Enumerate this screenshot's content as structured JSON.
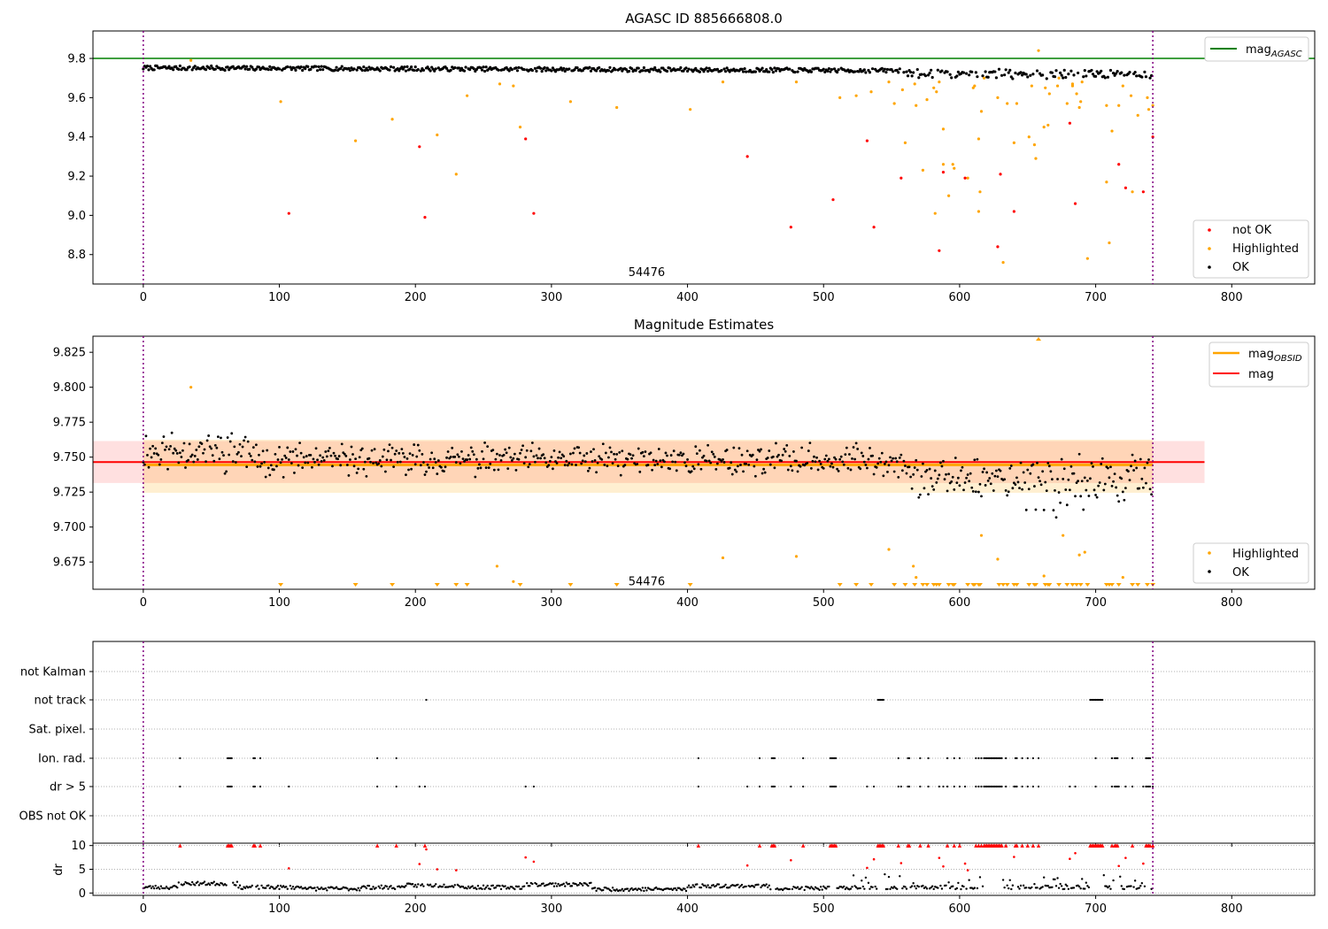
{
  "chart_data": [
    {
      "type": "scatter",
      "title": "AGASC ID 885666808.0",
      "xlim": [
        -37,
        861
      ],
      "ylim": [
        8.65,
        9.94
      ],
      "xticks": [
        0,
        100,
        200,
        300,
        400,
        500,
        600,
        700,
        800
      ],
      "yticks": [
        8.8,
        9.0,
        9.2,
        9.4,
        9.6,
        9.8
      ],
      "ytick_labels": [
        "8.8",
        "9.0",
        "9.2",
        "9.4",
        "9.6",
        "9.8"
      ],
      "vlines": [
        0,
        742
      ],
      "obsid_label": {
        "text": "54476",
        "x": 370,
        "y": 8.69
      },
      "mag_agasc": 9.8,
      "legend_top": [
        {
          "label": "mag",
          "sub": "AGASC",
          "color": "#008000"
        }
      ],
      "legend_bottom": [
        {
          "label": "not OK",
          "color": "#ff0000"
        },
        {
          "label": "Highlighted",
          "color": "#ffa500"
        },
        {
          "label": "OK",
          "color": "#000000"
        }
      ],
      "ok_band": {
        "n": 742,
        "center": 9.752,
        "amp": 0.011
      },
      "not_ok_points": [
        [
          107,
          9.01
        ],
        [
          203,
          9.35
        ],
        [
          207,
          8.99
        ],
        [
          281,
          9.39
        ],
        [
          287,
          9.01
        ],
        [
          444,
          9.3
        ],
        [
          476,
          8.94
        ],
        [
          507,
          9.08
        ],
        [
          532,
          9.38
        ],
        [
          537,
          8.94
        ],
        [
          557,
          9.19
        ],
        [
          585,
          8.82
        ],
        [
          588,
          9.22
        ],
        [
          604,
          9.19
        ],
        [
          628,
          8.84
        ],
        [
          630,
          9.21
        ],
        [
          640,
          9.02
        ],
        [
          681,
          9.47
        ],
        [
          685,
          9.06
        ],
        [
          717,
          9.26
        ],
        [
          722,
          9.14
        ],
        [
          735,
          9.12
        ],
        [
          742,
          9.4
        ]
      ],
      "highlighted_points": [
        [
          35,
          9.79
        ],
        [
          101,
          9.58
        ],
        [
          156,
          9.38
        ],
        [
          183,
          9.49
        ],
        [
          216,
          9.41
        ],
        [
          230,
          9.21
        ],
        [
          238,
          9.61
        ],
        [
          262,
          9.67
        ],
        [
          272,
          9.66
        ],
        [
          277,
          9.45
        ],
        [
          314,
          9.58
        ],
        [
          348,
          9.55
        ],
        [
          402,
          9.54
        ],
        [
          426,
          9.68
        ],
        [
          480,
          9.68
        ],
        [
          512,
          9.6
        ],
        [
          524,
          9.61
        ],
        [
          535,
          9.63
        ],
        [
          548,
          9.68
        ],
        [
          552,
          9.57
        ],
        [
          558,
          9.64
        ],
        [
          560,
          9.37
        ],
        [
          567,
          9.67
        ],
        [
          568,
          9.56
        ],
        [
          573,
          9.23
        ],
        [
          576,
          9.59
        ],
        [
          581,
          9.65
        ],
        [
          582,
          9.01
        ],
        [
          583,
          9.63
        ],
        [
          585,
          9.68
        ],
        [
          588,
          9.44
        ],
        [
          588,
          9.26
        ],
        [
          592,
          9.1
        ],
        [
          595,
          9.26
        ],
        [
          596,
          9.24
        ],
        [
          606,
          9.19
        ],
        [
          610,
          9.65
        ],
        [
          611,
          9.66
        ],
        [
          614,
          9.39
        ],
        [
          614,
          9.02
        ],
        [
          615,
          9.12
        ],
        [
          616,
          9.53
        ],
        [
          618,
          9.7
        ],
        [
          628,
          9.6
        ],
        [
          632,
          8.76
        ],
        [
          635,
          9.57
        ],
        [
          640,
          9.37
        ],
        [
          642,
          9.57
        ],
        [
          651,
          9.4
        ],
        [
          653,
          9.66
        ],
        [
          655,
          9.36
        ],
        [
          656,
          9.29
        ],
        [
          658,
          9.84
        ],
        [
          662,
          9.45
        ],
        [
          663,
          9.65
        ],
        [
          665,
          9.46
        ],
        [
          666,
          9.62
        ],
        [
          672,
          9.66
        ],
        [
          673,
          9.7
        ],
        [
          679,
          9.57
        ],
        [
          683,
          9.66
        ],
        [
          683,
          9.67
        ],
        [
          686,
          9.62
        ],
        [
          688,
          9.55
        ],
        [
          689,
          9.58
        ],
        [
          690,
          9.68
        ],
        [
          694,
          8.78
        ],
        [
          708,
          9.17
        ],
        [
          708,
          9.56
        ],
        [
          710,
          8.86
        ],
        [
          712,
          9.43
        ],
        [
          717,
          9.56
        ],
        [
          720,
          9.66
        ],
        [
          726,
          9.61
        ],
        [
          727,
          9.12
        ],
        [
          731,
          9.51
        ],
        [
          738,
          9.6
        ],
        [
          739,
          9.54
        ],
        [
          742,
          9.56
        ]
      ]
    },
    {
      "type": "scatter",
      "title": "Magnitude Estimates",
      "xlim": [
        -37,
        861
      ],
      "ylim": [
        9.6555,
        9.8365
      ],
      "xticks": [
        0,
        100,
        200,
        300,
        400,
        500,
        600,
        700,
        800
      ],
      "yticks": [
        9.675,
        9.7,
        9.725,
        9.75,
        9.775,
        9.8,
        9.825
      ],
      "ytick_labels": [
        "9.675",
        "9.700",
        "9.725",
        "9.750",
        "9.775",
        "9.800",
        "9.825"
      ],
      "vlines": [
        0,
        742
      ],
      "obsid_label": {
        "text": "54476",
        "x": 370,
        "y": 9.6585
      },
      "mag": 9.7465,
      "mag_band": [
        9.7315,
        9.7615
      ],
      "mag_obsid": 9.7445,
      "mag_obsid_band": [
        9.7245,
        9.7625
      ],
      "legend_top": [
        {
          "label": "mag",
          "sub": "OBSID",
          "color": "#ffa500"
        },
        {
          "label": "mag",
          "sub": "",
          "color": "#ff0000"
        }
      ],
      "legend_bottom": [
        {
          "label": "Highlighted",
          "color": "#ffa500"
        },
        {
          "label": "OK",
          "color": "#000000"
        }
      ],
      "ok_n": 742,
      "highlighted_points": [
        [
          35,
          9.8
        ],
        [
          260,
          9.672
        ],
        [
          272,
          9.661
        ],
        [
          426,
          9.678
        ],
        [
          480,
          9.679
        ],
        [
          548,
          9.684
        ],
        [
          566,
          9.672
        ],
        [
          568,
          9.664
        ],
        [
          616,
          9.694
        ],
        [
          628,
          9.677
        ],
        [
          662,
          9.665
        ],
        [
          676,
          9.694
        ],
        [
          688,
          9.68
        ],
        [
          692,
          9.682
        ],
        [
          720,
          9.664
        ]
      ],
      "lower_limit_x": [
        101,
        156,
        183,
        216,
        230,
        238,
        277,
        314,
        348,
        402,
        512,
        524,
        535,
        552,
        560,
        567,
        573,
        576,
        581,
        583,
        585,
        592,
        595,
        596,
        606,
        610,
        611,
        614,
        615,
        629,
        632,
        635,
        640,
        642,
        651,
        655,
        656,
        663,
        665,
        666,
        673,
        679,
        683,
        686,
        689,
        694,
        708,
        710,
        712,
        717,
        727,
        731,
        738,
        742
      ],
      "upper_limit_x": [
        658
      ]
    },
    {
      "type": "scatter",
      "title": "",
      "xlim": [
        -37,
        861
      ],
      "xticks": [
        0,
        100,
        200,
        300,
        400,
        500,
        600,
        700,
        800
      ],
      "vlines": [
        0,
        742
      ],
      "flag_rows": [
        "not Kalman",
        "not track",
        "Sat. pixel.",
        "Ion. rad.",
        "dr > 5",
        "OBS not OK"
      ],
      "flag_points": {
        "not track": [
          208,
          540,
          541,
          542,
          543,
          544,
          696,
          697,
          698,
          699,
          700,
          701,
          702,
          703,
          704,
          705
        ],
        "Ion. rad.": [
          27,
          62,
          63,
          64,
          65,
          81,
          82,
          86,
          172,
          186,
          408,
          453,
          462,
          463,
          464,
          485,
          505,
          506,
          507,
          508,
          509,
          555,
          562,
          563,
          571,
          577,
          591,
          596,
          600,
          612,
          614,
          616,
          618,
          619,
          620,
          621,
          622,
          623,
          624,
          625,
          626,
          627,
          628,
          629,
          630,
          631,
          634,
          641,
          642,
          646,
          650,
          654,
          658,
          700,
          712,
          714,
          715,
          716,
          727,
          737,
          738,
          739,
          740
        ],
        "dr > 5": [
          27,
          62,
          63,
          64,
          65,
          81,
          82,
          86,
          107,
          172,
          186,
          203,
          207,
          281,
          287,
          408,
          444,
          453,
          462,
          463,
          464,
          476,
          485,
          505,
          506,
          507,
          508,
          509,
          532,
          537,
          555,
          557,
          562,
          563,
          571,
          577,
          585,
          588,
          591,
          596,
          600,
          604,
          612,
          614,
          616,
          618,
          619,
          620,
          621,
          622,
          623,
          624,
          625,
          626,
          627,
          628,
          629,
          630,
          631,
          634,
          640,
          641,
          642,
          646,
          650,
          654,
          658,
          681,
          685,
          700,
          712,
          714,
          715,
          716,
          717,
          722,
          727,
          735,
          737,
          738,
          739,
          740,
          742
        ],
        "Sat. pixel.": [],
        "not Kalman": [],
        "OBS not OK": []
      }
    },
    {
      "type": "scatter",
      "title": "",
      "ylabel": "dr",
      "xlim": [
        -37,
        861
      ],
      "ylim": [
        -0.5,
        10.5
      ],
      "xticks": [
        0,
        100,
        200,
        300,
        400,
        500,
        600,
        700,
        800
      ],
      "xtick_labels": [
        "0",
        "100",
        "200",
        "300",
        "400",
        "500",
        "600",
        "700",
        "800"
      ],
      "yticks": [
        0,
        5,
        10
      ],
      "ytick_labels": [
        "0",
        "5",
        "10"
      ],
      "vlines": [
        0,
        742
      ],
      "dr_ok_n": 742,
      "dr_red_points": [
        [
          27,
          10
        ],
        [
          62,
          10
        ],
        [
          63,
          10
        ],
        [
          64,
          10
        ],
        [
          65,
          10
        ],
        [
          81,
          10
        ],
        [
          82,
          10
        ],
        [
          86,
          10
        ],
        [
          107,
          5.2
        ],
        [
          172,
          10
        ],
        [
          186,
          10
        ],
        [
          203,
          6.1
        ],
        [
          207,
          10
        ],
        [
          208,
          9.2
        ],
        [
          216,
          5.0
        ],
        [
          230,
          4.8
        ],
        [
          281,
          7.5
        ],
        [
          287,
          6.6
        ],
        [
          408,
          10
        ],
        [
          444,
          5.8
        ],
        [
          453,
          10
        ],
        [
          462,
          10
        ],
        [
          463,
          10
        ],
        [
          464,
          10
        ],
        [
          476,
          6.9
        ],
        [
          485,
          10
        ],
        [
          505,
          10
        ],
        [
          506,
          10
        ],
        [
          507,
          10
        ],
        [
          508,
          10
        ],
        [
          509,
          10
        ],
        [
          532,
          5.3
        ],
        [
          537,
          7.1
        ],
        [
          540,
          10
        ],
        [
          541,
          10
        ],
        [
          542,
          10
        ],
        [
          543,
          10
        ],
        [
          544,
          10
        ],
        [
          555,
          10
        ],
        [
          557,
          6.3
        ],
        [
          562,
          10
        ],
        [
          563,
          10
        ],
        [
          571,
          10
        ],
        [
          577,
          10
        ],
        [
          585,
          7.4
        ],
        [
          588,
          5.6
        ],
        [
          591,
          10
        ],
        [
          596,
          10
        ],
        [
          600,
          10
        ],
        [
          604,
          6.2
        ],
        [
          606,
          4.8
        ],
        [
          612,
          10
        ],
        [
          614,
          10
        ],
        [
          616,
          10
        ],
        [
          618,
          10
        ],
        [
          619,
          10
        ],
        [
          620,
          10
        ],
        [
          621,
          10
        ],
        [
          622,
          10
        ],
        [
          623,
          10
        ],
        [
          624,
          10
        ],
        [
          625,
          10
        ],
        [
          626,
          10
        ],
        [
          627,
          10
        ],
        [
          628,
          10
        ],
        [
          629,
          10
        ],
        [
          630,
          10
        ],
        [
          631,
          10
        ],
        [
          634,
          10
        ],
        [
          640,
          7.6
        ],
        [
          641,
          10
        ],
        [
          642,
          10
        ],
        [
          646,
          10
        ],
        [
          650,
          10
        ],
        [
          654,
          10
        ],
        [
          658,
          10
        ],
        [
          681,
          7.2
        ],
        [
          685,
          8.4
        ],
        [
          696,
          10
        ],
        [
          697,
          10
        ],
        [
          698,
          10
        ],
        [
          699,
          10
        ],
        [
          700,
          10
        ],
        [
          701,
          10
        ],
        [
          702,
          10
        ],
        [
          703,
          10
        ],
        [
          704,
          10
        ],
        [
          705,
          10
        ],
        [
          712,
          10
        ],
        [
          714,
          10
        ],
        [
          715,
          10
        ],
        [
          716,
          10
        ],
        [
          717,
          5.7
        ],
        [
          722,
          7.4
        ],
        [
          727,
          10
        ],
        [
          735,
          6.2
        ],
        [
          737,
          10
        ],
        [
          738,
          10
        ],
        [
          739,
          10
        ],
        [
          740,
          10
        ],
        [
          742,
          10
        ]
      ]
    }
  ]
}
